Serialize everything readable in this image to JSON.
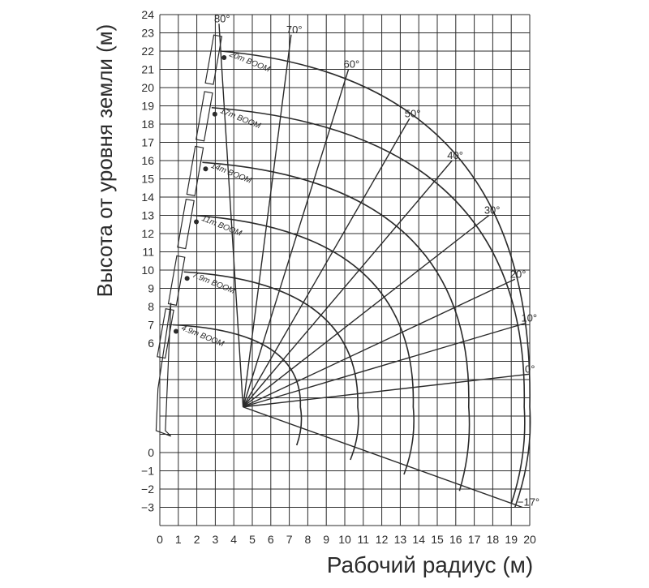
{
  "chart_data": {
    "type": "line",
    "title": "",
    "xlabel": "Рабочий радиус (м)",
    "ylabel": "Высота от уровня земли (м)",
    "xlim": [
      0,
      20
    ],
    "ylim": [
      -4,
      24
    ],
    "grid": true,
    "x_ticks": [
      "0",
      "1",
      "2",
      "3",
      "4",
      "5",
      "6",
      "7",
      "8",
      "9",
      "10",
      "11",
      "12",
      "13",
      "14",
      "15",
      "16",
      "17",
      "18",
      "19",
      "20"
    ],
    "y_ticks": [
      {
        "v": -3,
        "label": "−3"
      },
      {
        "v": -2,
        "label": "−2"
      },
      {
        "v": -1,
        "label": "−1"
      },
      {
        "v": 0,
        "label": "0"
      },
      {
        "v": 6,
        "label": "6"
      },
      {
        "v": 7,
        "label": "7"
      },
      {
        "v": 8,
        "label": "8"
      },
      {
        "v": 9,
        "label": "9"
      },
      {
        "v": 10,
        "label": "10"
      },
      {
        "v": 11,
        "label": "11"
      },
      {
        "v": 12,
        "label": "12"
      },
      {
        "v": 13,
        "label": "13"
      },
      {
        "v": 14,
        "label": "14"
      },
      {
        "v": 15,
        "label": "15"
      },
      {
        "v": 16,
        "label": "16"
      },
      {
        "v": 17,
        "label": "17"
      },
      {
        "v": 18,
        "label": "18"
      },
      {
        "v": 19,
        "label": "19"
      },
      {
        "v": 20,
        "label": "20"
      },
      {
        "v": 21,
        "label": "21"
      },
      {
        "v": 22,
        "label": "22"
      },
      {
        "v": 23,
        "label": "23"
      },
      {
        "v": 24,
        "label": "24"
      }
    ],
    "pivot": [
      4.5,
      2.5
    ],
    "series": [
      {
        "name": "4.9m BOOM",
        "tip_80": [
          0.7,
          7.0
        ],
        "tip_0": [
          7.6,
          2.5
        ],
        "tip_m17": [
          7.4,
          0.4
        ]
      },
      {
        "name": "7.9m BOOM",
        "tip_80": [
          1.3,
          9.9
        ],
        "tip_0": [
          10.7,
          2.5
        ],
        "tip_m17": [
          10.3,
          -0.4
        ]
      },
      {
        "name": "11m BOOM",
        "tip_80": [
          1.8,
          13.0
        ],
        "tip_0": [
          13.7,
          2.5
        ],
        "tip_m17": [
          13.2,
          -1.2
        ]
      },
      {
        "name": "14m BOOM",
        "tip_80": [
          2.3,
          15.9
        ],
        "tip_0": [
          16.7,
          2.5
        ],
        "tip_m17": [
          16.2,
          -2.1
        ]
      },
      {
        "name": "17m BOOM",
        "tip_80": [
          2.8,
          18.9
        ],
        "tip_0": [
          19.7,
          2.5
        ],
        "tip_m17": [
          19.0,
          -2.8
        ]
      },
      {
        "name": "20m BOOM",
        "tip_80": [
          3.3,
          22.0
        ],
        "tip_0": [
          20.0,
          2.5
        ],
        "tip_m17": [
          19.2,
          -3.0
        ]
      }
    ],
    "angle_lines": [
      {
        "label": "80°",
        "end": [
          3.2,
          23.5
        ]
      },
      {
        "label": "70°",
        "end": [
          7.1,
          22.9
        ]
      },
      {
        "label": "60°",
        "end": [
          10.2,
          21.0
        ]
      },
      {
        "label": "50°",
        "end": [
          13.5,
          18.3
        ]
      },
      {
        "label": "40°",
        "end": [
          15.8,
          16.0
        ]
      },
      {
        "label": "30°",
        "end": [
          17.8,
          13.0
        ]
      },
      {
        "label": "20°",
        "end": [
          19.2,
          9.5
        ]
      },
      {
        "label": "10°",
        "end": [
          19.8,
          7.1
        ]
      },
      {
        "label": "0°",
        "end": [
          20.0,
          4.3
        ]
      },
      {
        "label": "−17°",
        "end": [
          19.6,
          -3.0
        ]
      }
    ]
  }
}
